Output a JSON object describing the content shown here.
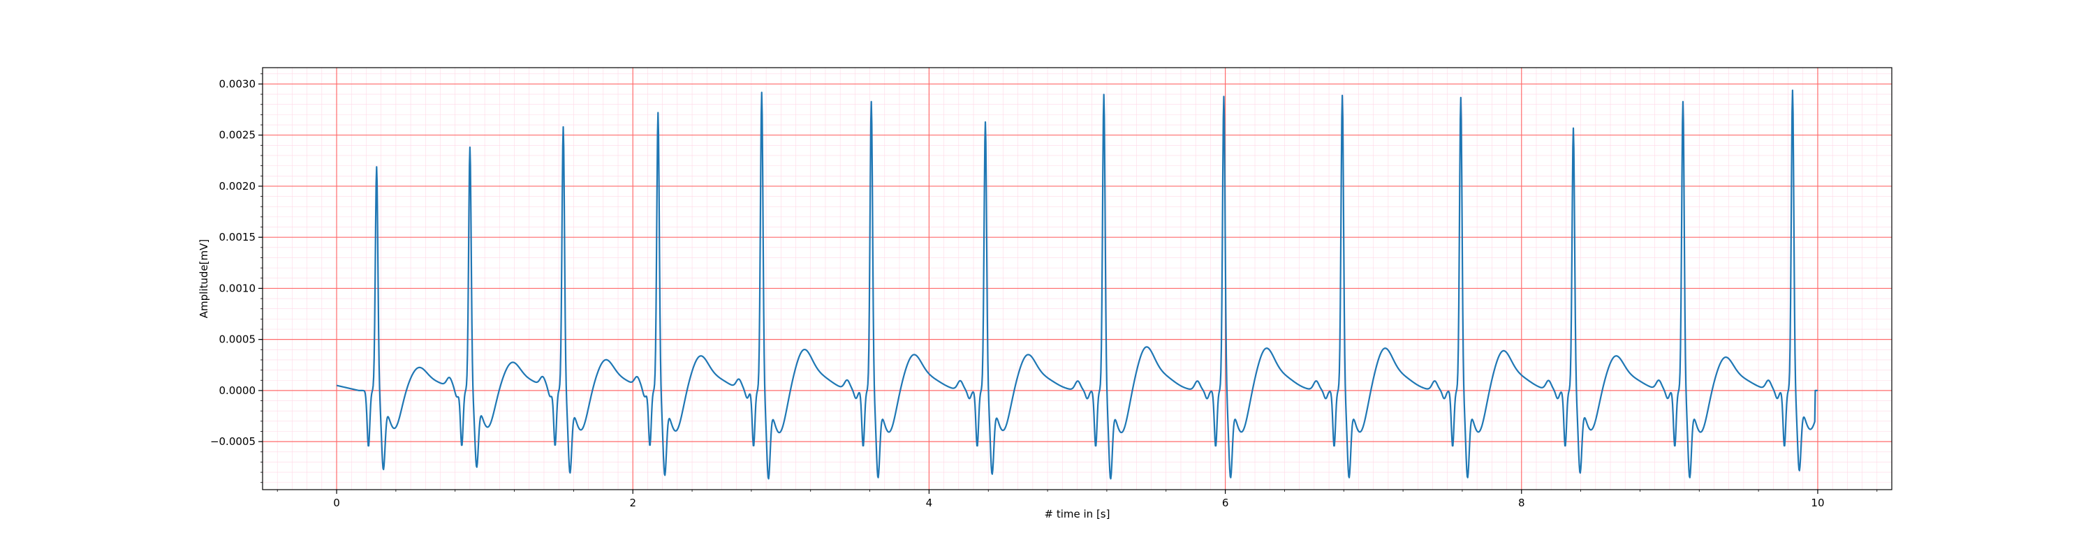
{
  "chart_data": {
    "type": "line",
    "title": "",
    "xlabel": "# time in [s]",
    "ylabel": "Amplitude[mV]",
    "xlim": [
      -0.5,
      10.5
    ],
    "ylim": [
      -0.00097,
      0.00316
    ],
    "x_ticks": [
      0,
      2,
      4,
      6,
      8,
      10
    ],
    "x_tick_labels": [
      "0",
      "2",
      "4",
      "6",
      "8",
      "10"
    ],
    "y_ticks": [
      -0.0005,
      0.0,
      0.0005,
      0.001,
      0.0015,
      0.002,
      0.0025,
      0.003
    ],
    "y_tick_labels": [
      "−0.0005",
      "0.0000",
      "0.0005",
      "0.0010",
      "0.0015",
      "0.0020",
      "0.0025",
      "0.0030"
    ],
    "grid": {
      "major": "on",
      "minor": "on",
      "major_color": "#ff6b6b",
      "minor_color": "#ffd8e6"
    },
    "line_color": "#1f77b4",
    "series": [
      {
        "name": "",
        "beats": [
          {
            "r_time": 0.27,
            "r_peak": 0.0022,
            "s_min": -0.00068,
            "t_peak": 0.00018
          },
          {
            "r_time": 0.9,
            "r_peak": 0.00239,
            "s_min": -0.00066,
            "t_peak": 0.00022
          },
          {
            "r_time": 1.53,
            "r_peak": 0.00259,
            "s_min": -0.00071,
            "t_peak": 0.00024
          },
          {
            "r_time": 2.17,
            "r_peak": 0.00273,
            "s_min": -0.00073,
            "t_peak": 0.00027
          },
          {
            "r_time": 2.87,
            "r_peak": 0.00293,
            "s_min": -0.00076,
            "t_peak": 0.00032
          },
          {
            "r_time": 3.61,
            "r_peak": 0.00284,
            "s_min": -0.00075,
            "t_peak": 0.00028
          },
          {
            "r_time": 4.38,
            "r_peak": 0.00264,
            "s_min": -0.00072,
            "t_peak": 0.00028
          },
          {
            "r_time": 5.18,
            "r_peak": 0.00291,
            "s_min": -0.00076,
            "t_peak": 0.00034
          },
          {
            "r_time": 5.99,
            "r_peak": 0.00289,
            "s_min": -0.00075,
            "t_peak": 0.00033
          },
          {
            "r_time": 6.79,
            "r_peak": 0.0029,
            "s_min": -0.00075,
            "t_peak": 0.00033
          },
          {
            "r_time": 7.59,
            "r_peak": 0.00288,
            "s_min": -0.00075,
            "t_peak": 0.00031
          },
          {
            "r_time": 8.35,
            "r_peak": 0.00258,
            "s_min": -0.00071,
            "t_peak": 0.00027
          },
          {
            "r_time": 9.09,
            "r_peak": 0.00284,
            "s_min": -0.00075,
            "t_peak": 0.00026
          },
          {
            "r_time": 9.83,
            "r_peak": 0.00295,
            "s_min": -0.00069,
            "t_peak": 0.0
          }
        ],
        "start": {
          "x": 0.0,
          "y": 5e-05
        },
        "end": {
          "x": 10.0,
          "y": 0.0
        }
      }
    ]
  }
}
